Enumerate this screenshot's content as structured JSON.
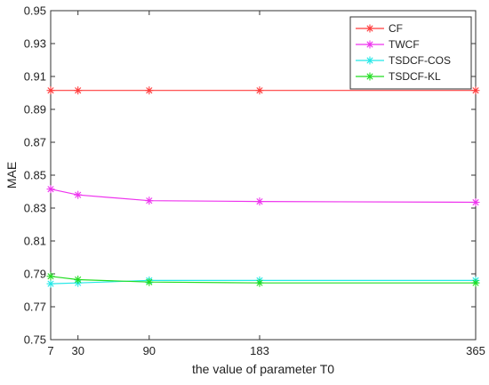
{
  "chart_data": {
    "type": "line",
    "xlabel": "the value of parameter T0",
    "ylabel": "MAE",
    "x": [
      7,
      30,
      90,
      183,
      365
    ],
    "x_ticks": [
      "7",
      "30",
      "90",
      "183",
      "365"
    ],
    "xlim": [
      7,
      365
    ],
    "ylim": [
      0.75,
      0.95
    ],
    "y_ticks": [
      "0.75",
      "0.77",
      "0.79",
      "0.81",
      "0.83",
      "0.85",
      "0.87",
      "0.89",
      "0.91",
      "0.93",
      "0.95"
    ],
    "grid": false,
    "legend_position": "top-right",
    "series": [
      {
        "name": "CF",
        "color": "#ff3b3b",
        "marker": "asterisk",
        "values": [
          0.9015,
          0.9015,
          0.9015,
          0.9015,
          0.9015
        ]
      },
      {
        "name": "TWCF",
        "color": "#ee33ee",
        "marker": "asterisk",
        "values": [
          0.8415,
          0.838,
          0.8345,
          0.834,
          0.8335
        ]
      },
      {
        "name": "TSDCF-COS",
        "color": "#22e8e8",
        "marker": "asterisk",
        "values": [
          0.784,
          0.7845,
          0.786,
          0.786,
          0.786
        ]
      },
      {
        "name": "TSDCF-KL",
        "color": "#22dd22",
        "marker": "asterisk",
        "values": [
          0.7885,
          0.7865,
          0.785,
          0.7845,
          0.7845
        ]
      }
    ]
  }
}
